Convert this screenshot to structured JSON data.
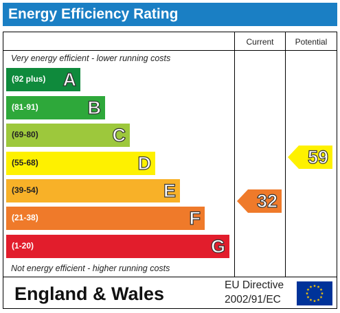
{
  "title": "Energy Efficiency Rating",
  "columns": {
    "current": "Current",
    "potential": "Potential"
  },
  "notes": {
    "top": "Very energy efficient - lower running costs",
    "bottom": "Not energy efficient - higher running costs"
  },
  "bands": [
    {
      "range": "(92 plus)",
      "letter": "A",
      "color": "#0f8a3c"
    },
    {
      "range": "(81-91)",
      "letter": "B",
      "color": "#2ea83a"
    },
    {
      "range": "(69-80)",
      "letter": "C",
      "color": "#9dc83c"
    },
    {
      "range": "(55-68)",
      "letter": "D",
      "color": "#fef100"
    },
    {
      "range": "(39-54)",
      "letter": "E",
      "color": "#f8b128"
    },
    {
      "range": "(21-38)",
      "letter": "F",
      "color": "#ef7a2a"
    },
    {
      "range": "(1-20)",
      "letter": "G",
      "color": "#e21d2c"
    }
  ],
  "ratings": {
    "current": {
      "value": "32",
      "color": "#ef7a2a"
    },
    "potential": {
      "value": "59",
      "color": "#fef100"
    }
  },
  "footer": {
    "region": "England & Wales",
    "directive_line1": "EU Directive",
    "directive_line2": "2002/91/EC"
  },
  "colors": {
    "header": "#1a7fc4",
    "eu_flag_blue": "#003399",
    "eu_flag_stars": "#ffcc00"
  }
}
